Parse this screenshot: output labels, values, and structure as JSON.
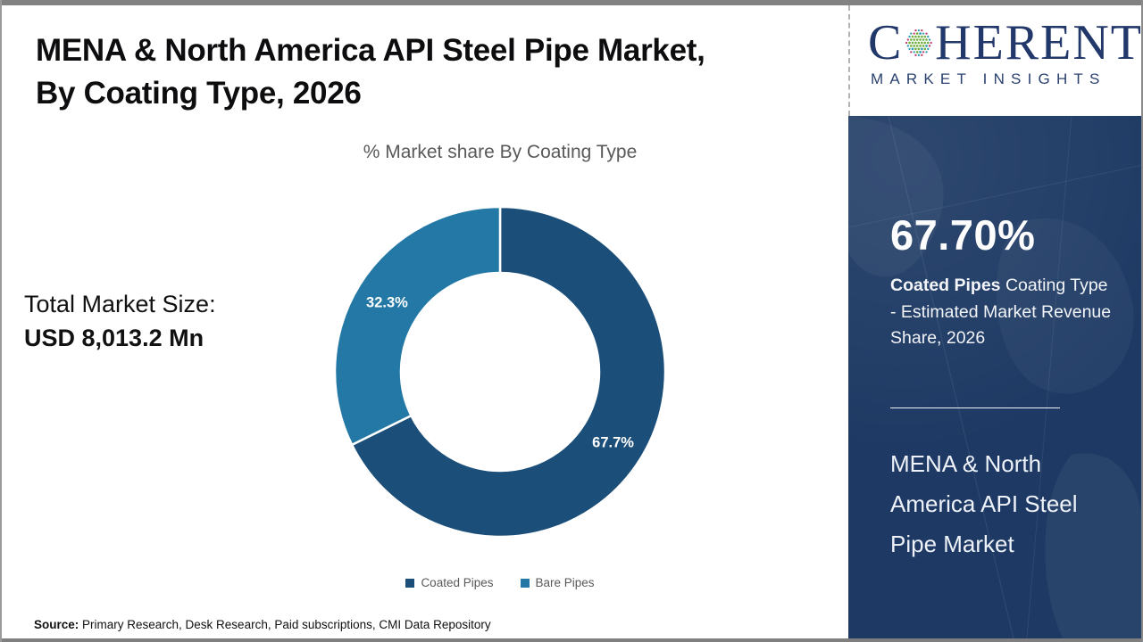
{
  "header": {
    "title_line1": "MENA & North America API Steel Pipe Market,",
    "title_line2": "By Coating Type, 2026"
  },
  "logo": {
    "brand_first_letter": "C",
    "brand_rest": "HERENT",
    "subtitle": "MARKET INSIGHTS"
  },
  "chart_data": {
    "type": "pie",
    "subtype": "donut",
    "title": "% Market share By Coating Type",
    "labels": [
      "Coated Pipes",
      "Bare Pipes"
    ],
    "values": [
      67.7,
      32.3
    ],
    "units": "percent",
    "data_labels": [
      "67.7%",
      "32.3%"
    ],
    "colors": [
      "#1b4e78",
      "#2378a5"
    ],
    "start_angle_deg": 0,
    "direction": "clockwise",
    "inner_radius_pct": 60,
    "legend_position": "bottom"
  },
  "total_market": {
    "label": "Total Market Size:",
    "value": "USD 8,013.2 Mn"
  },
  "sidebar": {
    "highlight_value": "67.70%",
    "highlight_bold": "Coated Pipes",
    "highlight_rest": " Coating Type - Estimated Market Revenue Share, 2026",
    "market_title": "MENA & North America API Steel Pipe Market"
  },
  "footer": {
    "source_label": "Source:",
    "source_text": " Primary Research, Desk Research, Paid subscriptions, CMI Data Repository"
  },
  "colors": {
    "accent_navy": "#1b4e78",
    "accent_teal": "#2378a5",
    "sidebar_navy": "#1e3a64",
    "logo_navy": "#22386b",
    "logo_green": "#74b043",
    "logo_teal": "#2d9db4",
    "logo_magenta": "#c23b72",
    "text_gray": "#595959",
    "frame_gray": "#828282"
  }
}
